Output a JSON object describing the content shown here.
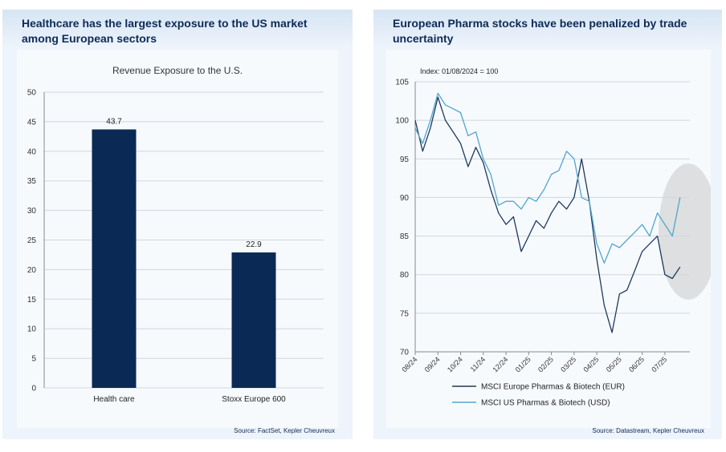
{
  "left": {
    "title_line1": "Healthcare has the largest exposure to the US market",
    "title_line2": "among European sectors",
    "source": "Source: FactSet, Kepler Cheuvreux"
  },
  "right": {
    "title_line1": "European Pharma stocks have been penalized by trade",
    "title_line2": "uncertainty",
    "source": "Source: Datastream, Kepler Cheuvreux",
    "annotation": "Index: 01/08/2024 = 100"
  },
  "colors": {
    "bar": "#0a2a55",
    "eur_line": "#1e3a5f",
    "usd_line": "#4ea6cf",
    "title": "#0d2b57"
  },
  "chart_data": [
    {
      "type": "bar",
      "title": "Revenue Exposure to the U.S.",
      "categories": [
        "Health care",
        "Stoxx Europe 600"
      ],
      "values": [
        43.7,
        22.9
      ],
      "value_labels": [
        "43.7",
        "22.9"
      ],
      "ylim": [
        0,
        50
      ],
      "yticks": [
        0,
        5,
        10,
        15,
        20,
        25,
        30,
        35,
        40,
        45,
        50
      ],
      "grid": true
    },
    {
      "type": "line",
      "title": "",
      "ylim": [
        70,
        105
      ],
      "yticks": [
        70,
        75,
        80,
        85,
        90,
        95,
        100,
        105
      ],
      "xticks": [
        "08/24",
        "09/24",
        "10/24",
        "11/24",
        "12/24",
        "01/25",
        "02/25",
        "03/25",
        "04/25",
        "05/25",
        "06/25",
        "07/25"
      ],
      "x": [
        0,
        0.33,
        0.67,
        1,
        1.33,
        1.67,
        2,
        2.33,
        2.67,
        3,
        3.33,
        3.67,
        4,
        4.33,
        4.67,
        5,
        5.33,
        5.67,
        6,
        6.33,
        6.67,
        7,
        7.33,
        7.67,
        8,
        8.33,
        8.67,
        9,
        9.33,
        9.67,
        10,
        10.33,
        10.67,
        11,
        11.33,
        11.67
      ],
      "series": [
        {
          "name": "MSCI Europe Pharmas & Biotech (EUR)",
          "values": [
            100,
            96,
            99,
            103,
            100,
            98.5,
            97,
            94,
            96.5,
            94.5,
            91,
            88,
            86.5,
            87.5,
            83,
            85,
            87,
            86,
            88,
            89.5,
            88.5,
            90,
            95,
            89.5,
            82,
            76,
            72.5,
            77.5,
            78,
            80.5,
            83,
            84,
            85,
            80,
            79.5,
            81
          ]
        },
        {
          "name": "MSCI US Pharmas & Biotech (USD)",
          "values": [
            99,
            97,
            100,
            103.5,
            102,
            101.5,
            101,
            98,
            98.5,
            95,
            93,
            89,
            89.5,
            89.5,
            88.5,
            90,
            89.5,
            91,
            93,
            93.5,
            96,
            95,
            90,
            89.5,
            84,
            81.5,
            84,
            83.5,
            84.5,
            85.5,
            86.5,
            85,
            88,
            86.5,
            85,
            90
          ]
        }
      ],
      "legend": "bottom"
    }
  ]
}
